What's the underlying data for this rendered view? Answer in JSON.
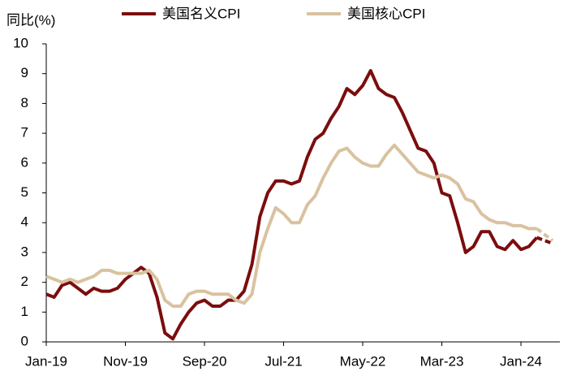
{
  "chart_data": {
    "type": "line",
    "y_label": "同比(%)",
    "categories": [
      "Jan-19",
      null,
      null,
      null,
      null,
      null,
      null,
      null,
      null,
      null,
      "Nov-19",
      null,
      null,
      null,
      null,
      null,
      null,
      null,
      null,
      null,
      "Sep-20",
      null,
      null,
      null,
      null,
      null,
      null,
      null,
      null,
      null,
      "Jul-21",
      null,
      null,
      null,
      null,
      null,
      null,
      null,
      null,
      null,
      "May-22",
      null,
      null,
      null,
      null,
      null,
      null,
      null,
      null,
      null,
      "Mar-23",
      null,
      null,
      null,
      null,
      null,
      null,
      null,
      null,
      null,
      "Jan-24",
      null,
      null,
      null,
      null
    ],
    "series": [
      {
        "name": "美国名义CPI",
        "color": "#7b0d0d",
        "values": [
          1.6,
          1.5,
          1.9,
          2.0,
          1.8,
          1.6,
          1.8,
          1.7,
          1.7,
          1.8,
          2.1,
          2.3,
          2.5,
          2.3,
          1.5,
          0.3,
          0.1,
          0.6,
          1.0,
          1.3,
          1.4,
          1.2,
          1.2,
          1.4,
          1.4,
          1.7,
          2.6,
          4.2,
          5.0,
          5.4,
          5.4,
          5.3,
          5.4,
          6.2,
          6.8,
          7.0,
          7.5,
          7.9,
          8.5,
          8.3,
          8.6,
          9.1,
          8.5,
          8.3,
          8.2,
          7.7,
          7.1,
          6.5,
          6.4,
          6.0,
          5.0,
          4.9,
          4.0,
          3.0,
          3.2,
          3.7,
          3.7,
          3.2,
          3.1,
          3.4,
          3.1,
          3.2,
          3.5,
          3.4,
          3.3
        ]
      },
      {
        "name": "美国核心CPI",
        "color": "#d9c2a0",
        "values": [
          2.2,
          2.1,
          2.0,
          2.1,
          2.0,
          2.1,
          2.2,
          2.4,
          2.4,
          2.3,
          2.3,
          2.3,
          2.3,
          2.4,
          2.1,
          1.4,
          1.2,
          1.2,
          1.6,
          1.7,
          1.7,
          1.6,
          1.6,
          1.6,
          1.4,
          1.3,
          1.6,
          3.0,
          3.8,
          4.5,
          4.3,
          4.0,
          4.0,
          4.6,
          4.9,
          5.5,
          6.0,
          6.4,
          6.5,
          6.2,
          6.0,
          5.9,
          5.9,
          6.3,
          6.6,
          6.3,
          6.0,
          5.7,
          5.6,
          5.5,
          5.6,
          5.5,
          5.3,
          4.8,
          4.7,
          4.3,
          4.1,
          4.0,
          4.0,
          3.9,
          3.9,
          3.8,
          3.8,
          3.6,
          3.4
        ]
      }
    ],
    "dashed_from": 62,
    "ylim": [
      0,
      10
    ],
    "yticks": [
      0,
      1,
      2,
      3,
      4,
      5,
      6,
      7,
      8,
      9,
      10
    ],
    "grid": false,
    "legend": "top"
  }
}
